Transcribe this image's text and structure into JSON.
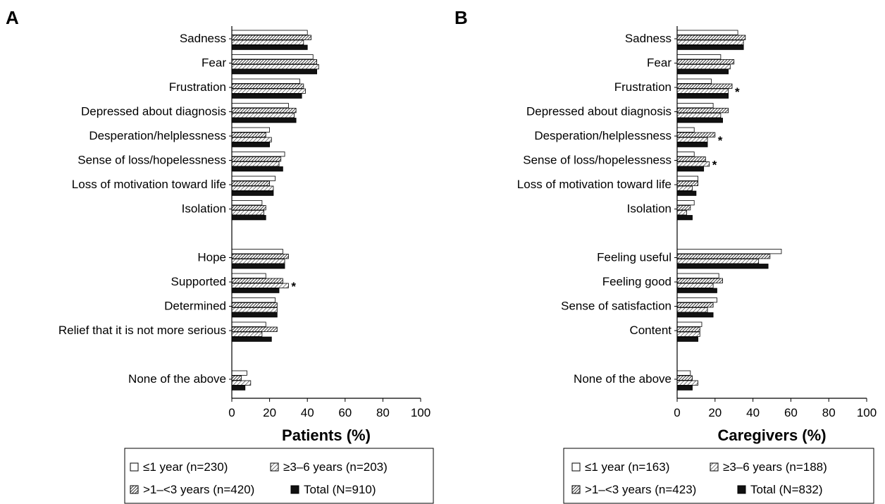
{
  "panels": [
    {
      "letter": "A",
      "legend": [
        "≤1 year (n=230)",
        "≥3–6 years (n=203)",
        ">1–<3 years (n=420)",
        "Total (N=910)"
      ]
    },
    {
      "letter": "B",
      "legend": [
        "≤1 year (n=163)",
        "≥3–6 years (n=188)",
        ">1–<3 years (n=423)",
        "Total (N=832)"
      ]
    }
  ],
  "chart_data": [
    {
      "type": "bar",
      "orientation": "horizontal",
      "xlabel": "Patients (%)",
      "xlim": [
        0,
        100
      ],
      "xticks": [
        0,
        20,
        40,
        60,
        80,
        100
      ],
      "categories": [
        "Sadness",
        "Fear",
        "Frustration",
        "Depressed about diagnosis",
        "Desperation/helplessness",
        "Sense of loss/hopelessness",
        "Loss of motivation toward life",
        "Isolation",
        "Hope",
        "Supported",
        "Determined",
        "Relief that it is not more serious",
        "None of the above"
      ],
      "group_gap_after": [
        7,
        11
      ],
      "series": [
        {
          "name": "≤1 year (n=230)",
          "pattern": "white",
          "values": [
            40,
            43,
            36,
            30,
            20,
            28,
            23,
            16,
            27,
            18,
            23,
            18,
            8
          ]
        },
        {
          "name": ">1–<3 years (n=420)",
          "pattern": "hatch-dense",
          "values": [
            42,
            45,
            38,
            34,
            18,
            26,
            20,
            18,
            30,
            27,
            24,
            24,
            5
          ]
        },
        {
          "name": "≥3–6 years (n=203)",
          "pattern": "hatch",
          "values": [
            38,
            46,
            39,
            33,
            21,
            25,
            22,
            17,
            28,
            30,
            24,
            16,
            10
          ]
        },
        {
          "name": "Total (N=910)",
          "pattern": "black",
          "values": [
            40,
            45,
            37,
            34,
            20,
            27,
            22,
            18,
            28,
            25,
            24,
            21,
            7
          ]
        }
      ],
      "annotations": [
        {
          "category": "Supported",
          "text": "*"
        }
      ]
    },
    {
      "type": "bar",
      "orientation": "horizontal",
      "xlabel": "Caregivers (%)",
      "xlim": [
        0,
        100
      ],
      "xticks": [
        0,
        20,
        40,
        60,
        80,
        100
      ],
      "categories": [
        "Sadness",
        "Fear",
        "Frustration",
        "Depressed about diagnosis",
        "Desperation/helplessness",
        "Sense of loss/hopelessness",
        "Loss of motivation toward life",
        "Isolation",
        "Feeling useful",
        "Feeling good",
        "Sense of satisfaction",
        "Content",
        "None of the above"
      ],
      "group_gap_after": [
        7,
        11
      ],
      "series": [
        {
          "name": "≤1 year (n=163)",
          "pattern": "white",
          "values": [
            32,
            23,
            18,
            19,
            9,
            9,
            11,
            9,
            55,
            22,
            21,
            13,
            7
          ]
        },
        {
          "name": ">1–<3 years (n=423)",
          "pattern": "hatch-dense",
          "values": [
            36,
            30,
            29,
            27,
            20,
            15,
            11,
            7,
            49,
            24,
            19,
            12,
            8
          ]
        },
        {
          "name": "≥3–6 years (n=188)",
          "pattern": "hatch",
          "values": [
            35,
            28,
            27,
            23,
            16,
            17,
            8,
            5,
            43,
            19,
            16,
            12,
            11
          ]
        },
        {
          "name": "Total (N=832)",
          "pattern": "black",
          "values": [
            35,
            27,
            27,
            24,
            16,
            14,
            10,
            8,
            48,
            21,
            19,
            11,
            8
          ]
        }
      ],
      "annotations": [
        {
          "category": "Frustration",
          "text": "*"
        },
        {
          "category": "Desperation/helplessness",
          "text": "*"
        },
        {
          "category": "Sense of loss/hopelessness",
          "text": "*"
        }
      ]
    }
  ]
}
